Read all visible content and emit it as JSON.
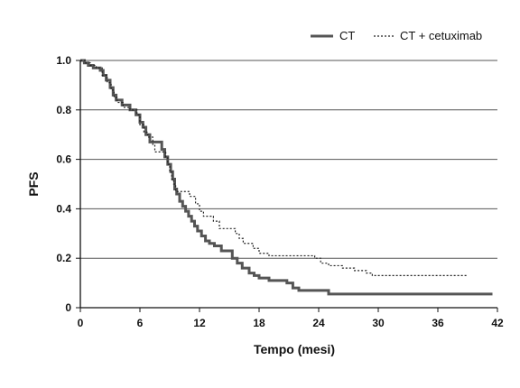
{
  "chart_data": {
    "type": "line",
    "title": "",
    "xlabel": "Tempo (mesi)",
    "ylabel": "PFS",
    "xlim": [
      0,
      42
    ],
    "ylim": [
      0,
      1.0
    ],
    "x_ticks": [
      0,
      6,
      12,
      18,
      24,
      30,
      36,
      42
    ],
    "y_ticks": [
      0,
      0.2,
      0.4,
      0.6,
      0.8,
      1.0
    ],
    "y_tick_labels": [
      "0",
      "0.2",
      "0.4",
      "0.6",
      "0.8",
      "1.0"
    ],
    "grid": "horizontal",
    "legend_position": "top-right",
    "series": [
      {
        "name": "CT",
        "style": "solid",
        "color": "#555555",
        "step_points": [
          [
            0,
            1.0
          ],
          [
            0.4,
            0.99
          ],
          [
            0.8,
            0.98
          ],
          [
            1.3,
            0.97
          ],
          [
            2.0,
            0.96
          ],
          [
            2.3,
            0.94
          ],
          [
            2.6,
            0.92
          ],
          [
            3.0,
            0.89
          ],
          [
            3.3,
            0.86
          ],
          [
            3.6,
            0.84
          ],
          [
            4.2,
            0.82
          ],
          [
            5.0,
            0.8
          ],
          [
            5.6,
            0.78
          ],
          [
            6.0,
            0.75
          ],
          [
            6.3,
            0.73
          ],
          [
            6.6,
            0.7
          ],
          [
            7.0,
            0.67
          ],
          [
            8.2,
            0.64
          ],
          [
            8.5,
            0.61
          ],
          [
            8.8,
            0.58
          ],
          [
            9.1,
            0.55
          ],
          [
            9.3,
            0.52
          ],
          [
            9.5,
            0.48
          ],
          [
            9.7,
            0.46
          ],
          [
            10.0,
            0.43
          ],
          [
            10.3,
            0.41
          ],
          [
            10.6,
            0.39
          ],
          [
            10.9,
            0.37
          ],
          [
            11.2,
            0.35
          ],
          [
            11.5,
            0.33
          ],
          [
            11.8,
            0.31
          ],
          [
            12.2,
            0.29
          ],
          [
            12.6,
            0.27
          ],
          [
            13.0,
            0.26
          ],
          [
            13.5,
            0.25
          ],
          [
            14.2,
            0.23
          ],
          [
            15.3,
            0.2
          ],
          [
            15.8,
            0.18
          ],
          [
            16.3,
            0.16
          ],
          [
            17.0,
            0.14
          ],
          [
            17.5,
            0.13
          ],
          [
            18.0,
            0.12
          ],
          [
            19.0,
            0.11
          ],
          [
            20.8,
            0.1
          ],
          [
            21.4,
            0.08
          ],
          [
            22.0,
            0.07
          ],
          [
            25.0,
            0.055
          ],
          [
            41.5,
            0.055
          ]
        ]
      },
      {
        "name": "CT + cetuximab",
        "style": "dotted",
        "color": "#222222",
        "step_points": [
          [
            0,
            1.0
          ],
          [
            0.5,
            0.99
          ],
          [
            1.0,
            0.98
          ],
          [
            1.6,
            0.97
          ],
          [
            2.2,
            0.94
          ],
          [
            2.7,
            0.91
          ],
          [
            3.1,
            0.88
          ],
          [
            3.4,
            0.85
          ],
          [
            3.7,
            0.83
          ],
          [
            4.3,
            0.81
          ],
          [
            5.0,
            0.8
          ],
          [
            5.7,
            0.78
          ],
          [
            6.0,
            0.74
          ],
          [
            6.4,
            0.71
          ],
          [
            6.8,
            0.69
          ],
          [
            7.3,
            0.66
          ],
          [
            7.5,
            0.63
          ],
          [
            8.6,
            0.61
          ],
          [
            8.8,
            0.58
          ],
          [
            9.0,
            0.55
          ],
          [
            9.2,
            0.52
          ],
          [
            9.4,
            0.5
          ],
          [
            9.6,
            0.47
          ],
          [
            11.0,
            0.45
          ],
          [
            11.6,
            0.42
          ],
          [
            12.0,
            0.39
          ],
          [
            12.4,
            0.37
          ],
          [
            13.4,
            0.35
          ],
          [
            14.0,
            0.32
          ],
          [
            15.6,
            0.3
          ],
          [
            16.0,
            0.28
          ],
          [
            16.4,
            0.26
          ],
          [
            17.4,
            0.24
          ],
          [
            18.0,
            0.22
          ],
          [
            19.0,
            0.21
          ],
          [
            23.6,
            0.2
          ],
          [
            24.2,
            0.18
          ],
          [
            25.0,
            0.17
          ],
          [
            26.4,
            0.16
          ],
          [
            27.6,
            0.15
          ],
          [
            28.8,
            0.14
          ],
          [
            29.4,
            0.13
          ],
          [
            39.0,
            0.13
          ]
        ]
      }
    ]
  }
}
